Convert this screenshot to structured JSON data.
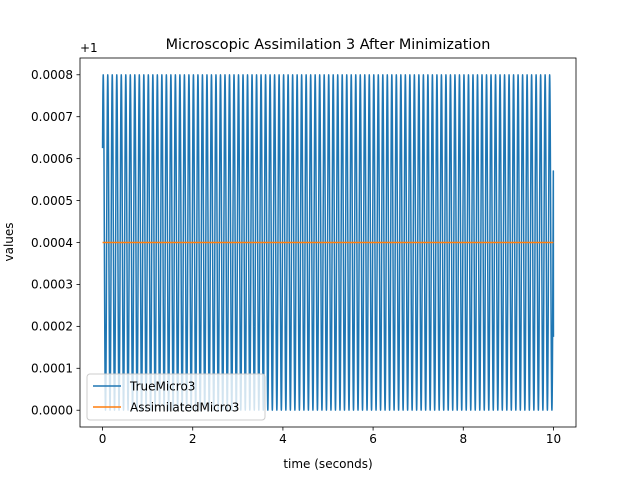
{
  "chart_data": {
    "type": "line",
    "title": "Microscopic Assimilation 3 After Minimization",
    "xlabel": "time (seconds)",
    "ylabel": "values",
    "offset_label": "+1",
    "xlim": [
      -0.5,
      10.5
    ],
    "ylim": [
      -4e-05,
      0.00084
    ],
    "xticks": [
      0,
      2,
      4,
      6,
      8,
      10
    ],
    "xtick_labels": [
      "0",
      "2",
      "4",
      "6",
      "8",
      "10"
    ],
    "yticks": [
      0.0,
      0.0001,
      0.0002,
      0.0003,
      0.0004,
      0.0005,
      0.0006,
      0.0007,
      0.0008
    ],
    "ytick_labels": [
      "0.0000",
      "0.0001",
      "0.0002",
      "0.0003",
      "0.0004",
      "0.0005",
      "0.0006",
      "0.0007",
      "0.0008"
    ],
    "grid": false,
    "legend_position": "lower-left",
    "series": [
      {
        "name": "TrueMicro3",
        "color": "#1f77b4",
        "kind": "sinusoid",
        "x_start": 0,
        "x_end": 10,
        "mean": 0.0004,
        "amplitude": 0.0004,
        "frequency_hz": 10,
        "start_value": 0.000625,
        "end_value": 0.000175
      },
      {
        "name": "AssimilatedMicro3",
        "color": "#ff7f0e",
        "kind": "constant",
        "x": [
          0,
          10
        ],
        "y": [
          0.0004,
          0.0004
        ]
      }
    ]
  }
}
